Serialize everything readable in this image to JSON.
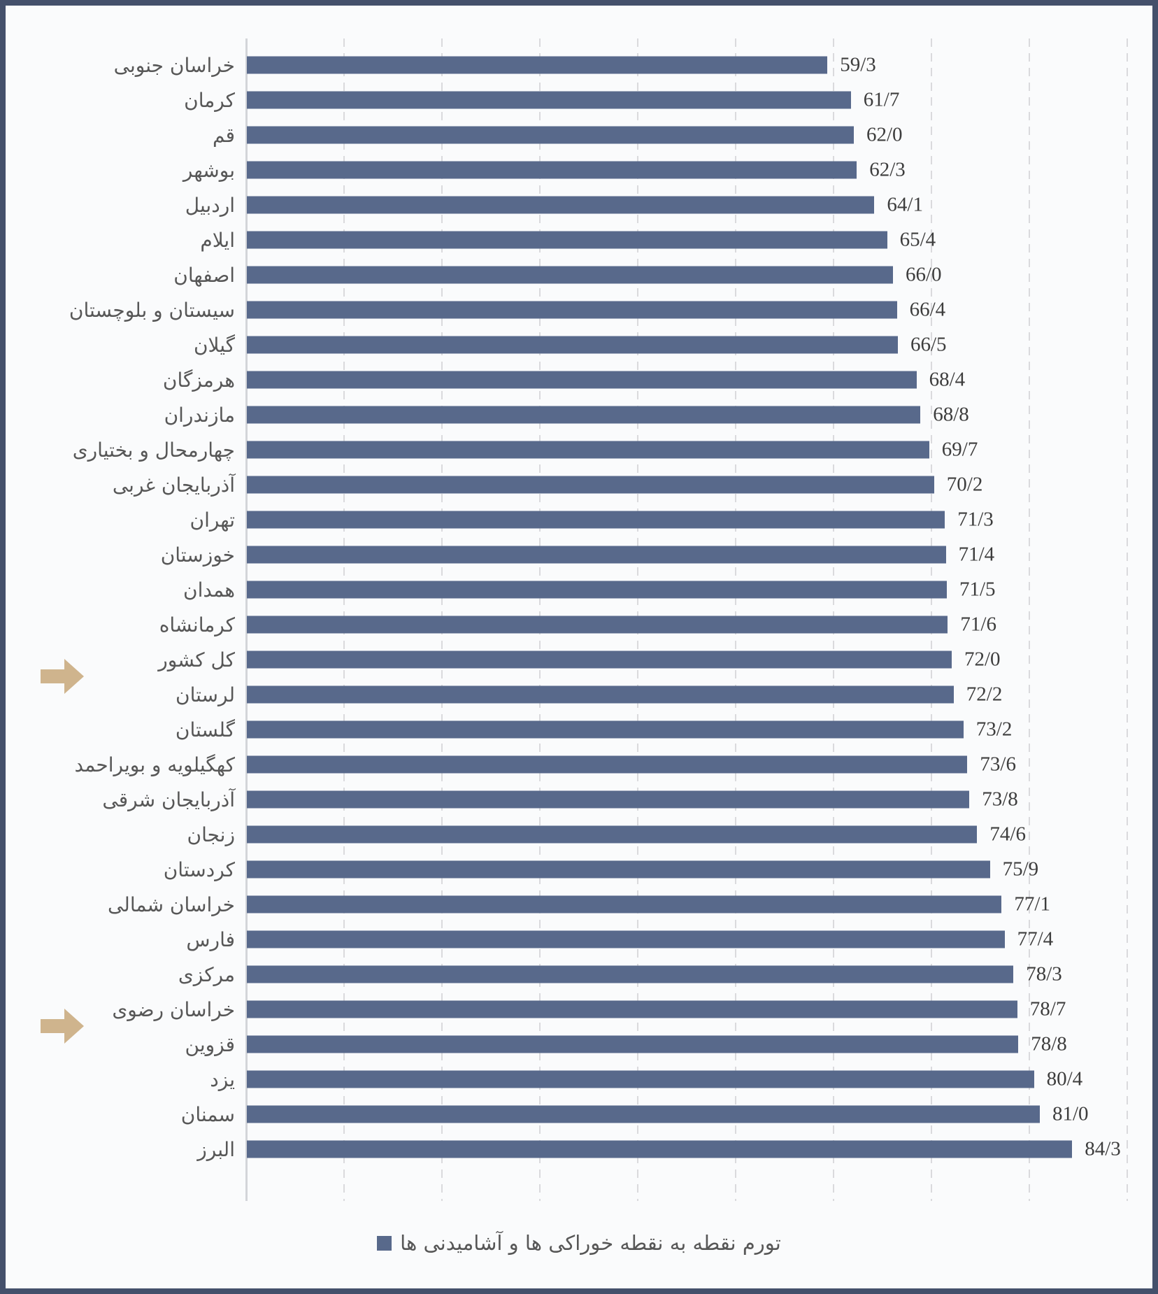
{
  "frame": {
    "border_color": "#44506b",
    "background_color": "#fafbfc"
  },
  "chart_data": {
    "type": "bar",
    "orientation": "horizontal",
    "title": "",
    "xlabel": "",
    "ylabel": "",
    "xlim": [
      0,
      90
    ],
    "grid": "on",
    "grid_step": 10,
    "decimal_separator": "/",
    "bar_color": "#58698b",
    "grid_color": "#dadadd",
    "axis_color": "#d3d5d9",
    "categories": [
      "خراسان جنوبی",
      "کرمان",
      "قم",
      "بوشهر",
      "اردبیل",
      "ایلام",
      "اصفهان",
      "سیستان و بلوچستان",
      "گیلان",
      "هرمزگان",
      "مازندران",
      "چهارمحال و بختیاری",
      "آذربایجان غربی",
      "تهران",
      "خوزستان",
      "همدان",
      "کرمانشاه",
      "کل کشور",
      "لرستان",
      "گلستان",
      "کهگیلویه و بویراحمد",
      "آذربایجان شرقی",
      "زنجان",
      "کردستان",
      "خراسان شمالی",
      "فارس",
      "مرکزی",
      "خراسان رضوی",
      "قزوین",
      "یزد",
      "سمنان",
      "البرز"
    ],
    "values": [
      59.3,
      61.7,
      62.0,
      62.3,
      64.1,
      65.4,
      66.0,
      66.4,
      66.5,
      68.4,
      68.8,
      69.7,
      70.2,
      71.3,
      71.4,
      71.5,
      71.6,
      72.0,
      72.2,
      73.2,
      73.6,
      73.8,
      74.6,
      75.9,
      77.1,
      77.4,
      78.3,
      78.7,
      78.8,
      80.4,
      81.0,
      84.3
    ],
    "value_labels": [
      "59/3",
      "61/7",
      "62/0",
      "62/3",
      "64/1",
      "65/4",
      "66/0",
      "66/4",
      "66/5",
      "68/4",
      "68/8",
      "69/7",
      "70/2",
      "71/3",
      "71/4",
      "71/5",
      "71/6",
      "72/0",
      "72/2",
      "73/2",
      "73/6",
      "73/8",
      "74/6",
      "75/9",
      "77/1",
      "77/4",
      "78/3",
      "78/7",
      "78/8",
      "80/4",
      "81/0",
      "84/3"
    ],
    "annotations": {
      "arrow_rows": [
        "کل کشور",
        "خراسان رضوی"
      ],
      "arrow_color": "#cfb48d",
      "arrow_direction": "right"
    },
    "legend": [
      {
        "label": "تورم نقطه به نقطه  خوراکی ها و آشامیدنی ها",
        "color": "#58698b"
      }
    ],
    "legend_position": "bottom-center"
  }
}
